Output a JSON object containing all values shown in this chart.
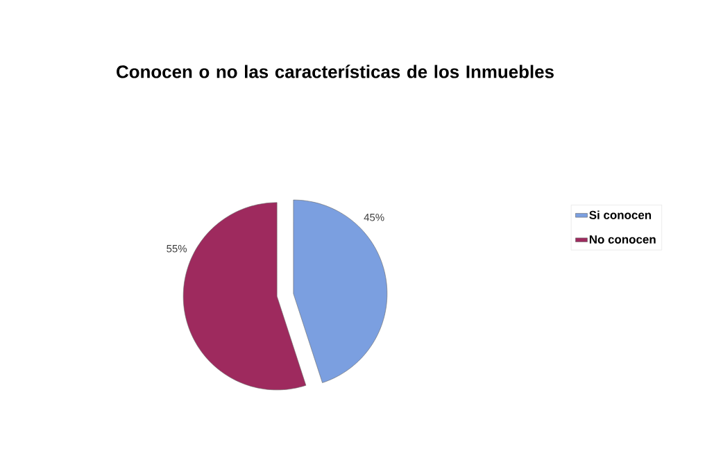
{
  "chart_data": {
    "type": "pie",
    "title": "Conocen o no las características de los Inmuebles",
    "categories": [
      "Si conocen",
      "No conocen"
    ],
    "values": [
      45,
      55
    ],
    "colors": [
      "#7b9fe0",
      "#9e2a5e"
    ],
    "value_labels": [
      "45%",
      "55%"
    ],
    "legend": "right"
  }
}
